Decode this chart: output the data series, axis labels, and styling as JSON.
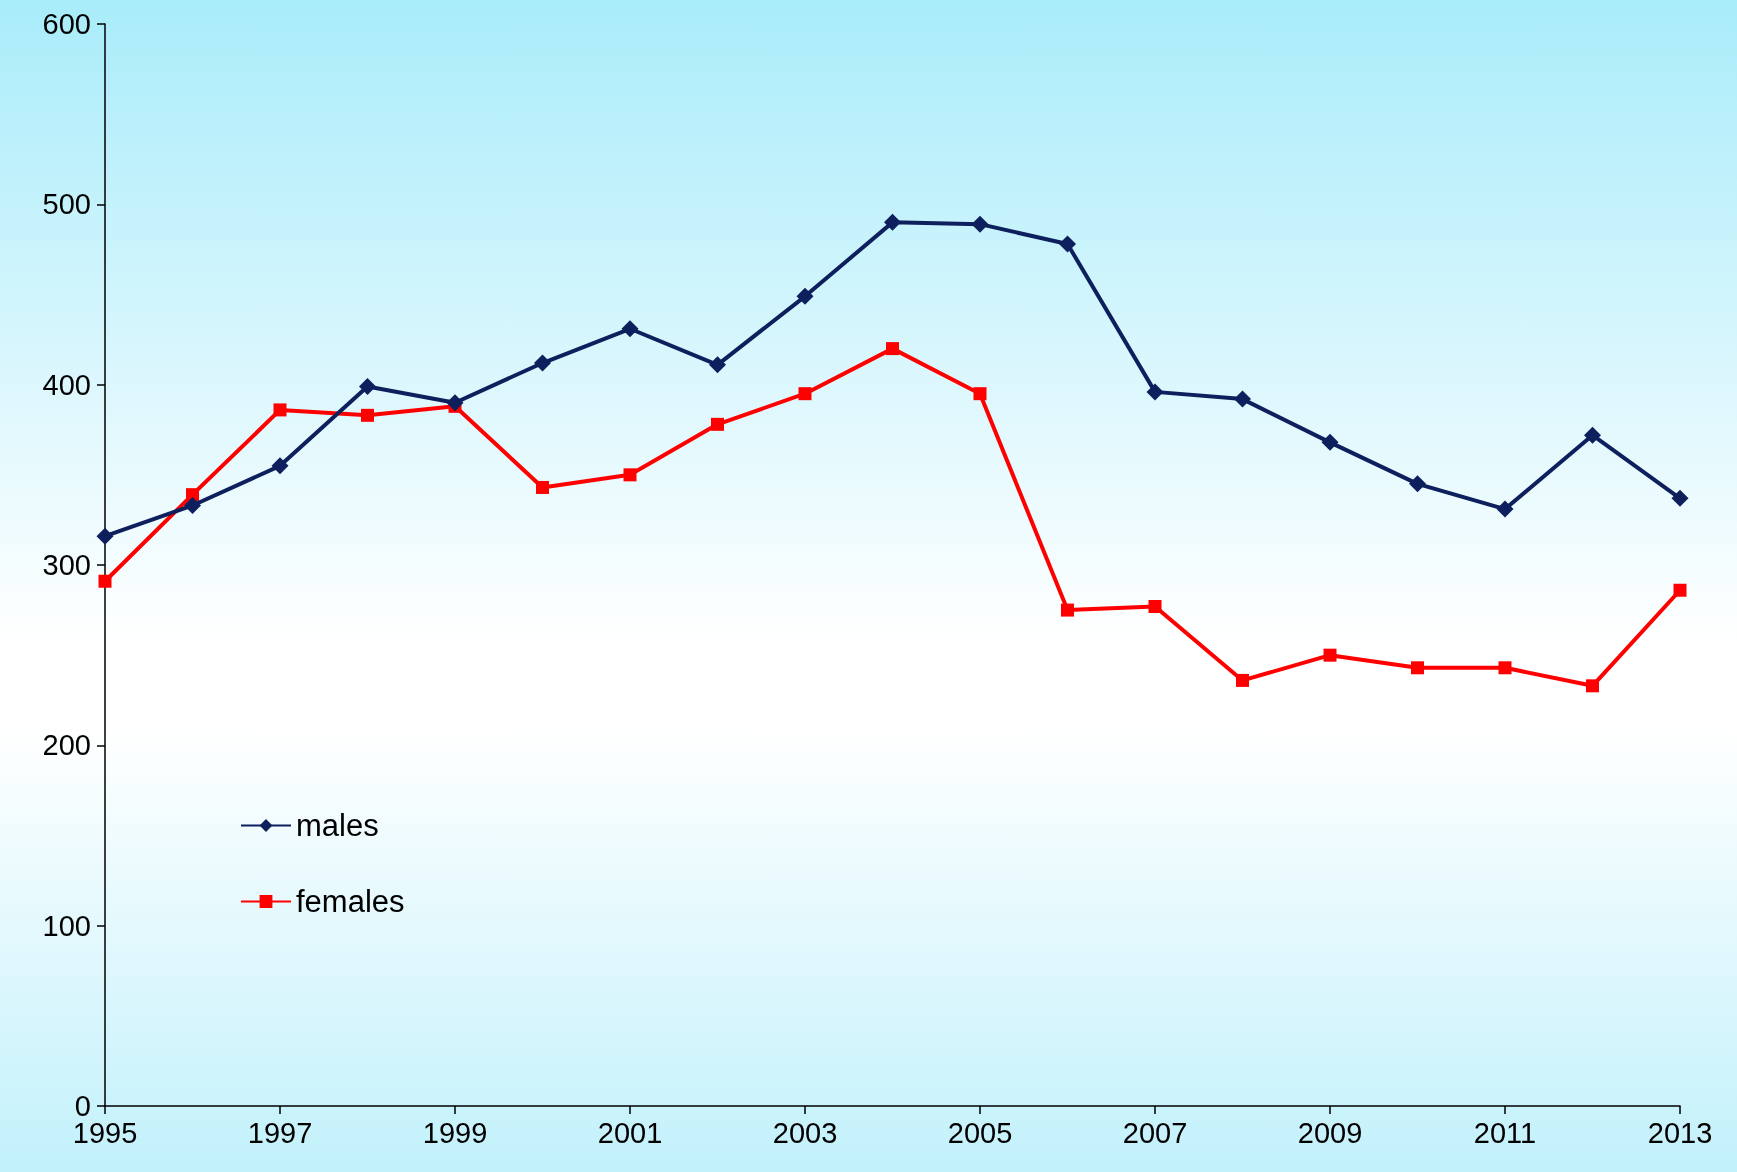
{
  "chart_data": {
    "type": "line",
    "x": [
      1995,
      1996,
      1997,
      1998,
      1999,
      2000,
      2001,
      2002,
      2003,
      2004,
      2005,
      2006,
      2007,
      2008,
      2009,
      2010,
      2011,
      2012,
      2013
    ],
    "series": [
      {
        "name": "males",
        "color": "#0d1f5c",
        "marker": "diamond",
        "values": [
          316,
          333,
          355,
          399,
          390,
          412,
          431,
          411,
          449,
          490,
          489,
          478,
          396,
          392,
          368,
          345,
          331,
          372,
          337
        ]
      },
      {
        "name": "females",
        "color": "#ff0000",
        "marker": "square",
        "values": [
          291,
          339,
          386,
          383,
          388,
          343,
          350,
          378,
          395,
          420,
          395,
          275,
          277,
          236,
          250,
          243,
          243,
          233,
          286
        ]
      }
    ],
    "xlim": [
      1995,
      2013
    ],
    "xticks": [
      1995,
      1997,
      1999,
      2001,
      2003,
      2005,
      2007,
      2009,
      2011,
      2013
    ],
    "ylim": [
      0,
      600
    ],
    "yticks": [
      0,
      100,
      200,
      300,
      400,
      500,
      600
    ],
    "grid": false,
    "legend": "bottom left",
    "line_style": "solid"
  }
}
